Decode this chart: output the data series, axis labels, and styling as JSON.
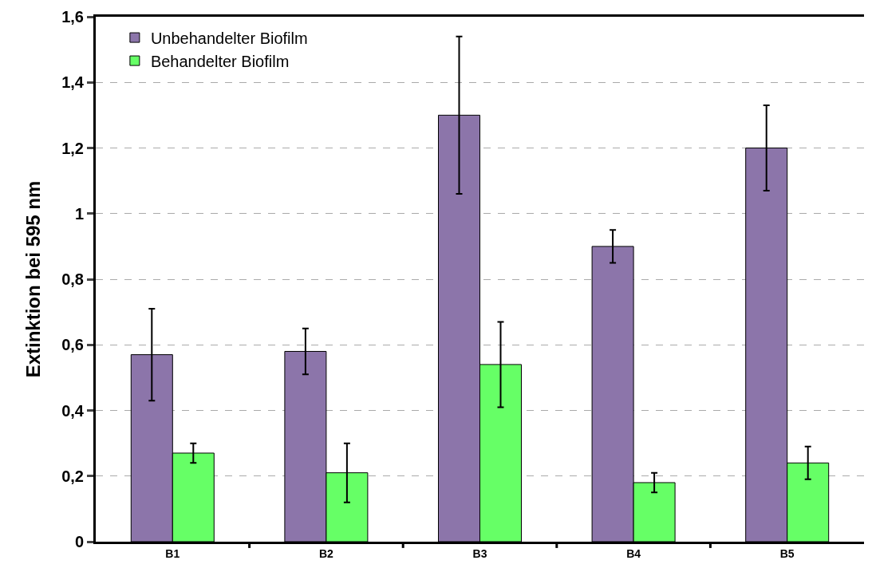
{
  "chart_data": {
    "type": "bar",
    "ylabel": "Extinktion bei 595 nm",
    "categories": [
      "B1",
      "B2",
      "B3",
      "B4",
      "B5"
    ],
    "series": [
      {
        "name": "Unbehandelter Biofilm",
        "color": "#8c75aa",
        "values": [
          0.57,
          0.58,
          1.3,
          0.9,
          1.2
        ],
        "errors": [
          0.14,
          0.07,
          0.24,
          0.05,
          0.13
        ]
      },
      {
        "name": "Behandelter Biofilm",
        "color": "#66ff66",
        "values": [
          0.27,
          0.21,
          0.54,
          0.18,
          0.24
        ],
        "errors": [
          0.03,
          0.09,
          0.13,
          0.03,
          0.05
        ]
      }
    ],
    "ylim": [
      0,
      1.6
    ],
    "yticks": [
      0,
      {
        "value": 0.2,
        "label": "0,2"
      },
      {
        "value": 0.4,
        "label": "0,4"
      },
      {
        "value": 0.6,
        "label": "0,6"
      },
      {
        "value": 0.8,
        "label": "0,8"
      },
      1,
      {
        "value": 1.2,
        "label": "1,2"
      },
      {
        "value": 1.4,
        "label": "1,4"
      },
      {
        "value": 1.6,
        "label": "1,6"
      }
    ],
    "grid": "y",
    "legend": "top left"
  }
}
